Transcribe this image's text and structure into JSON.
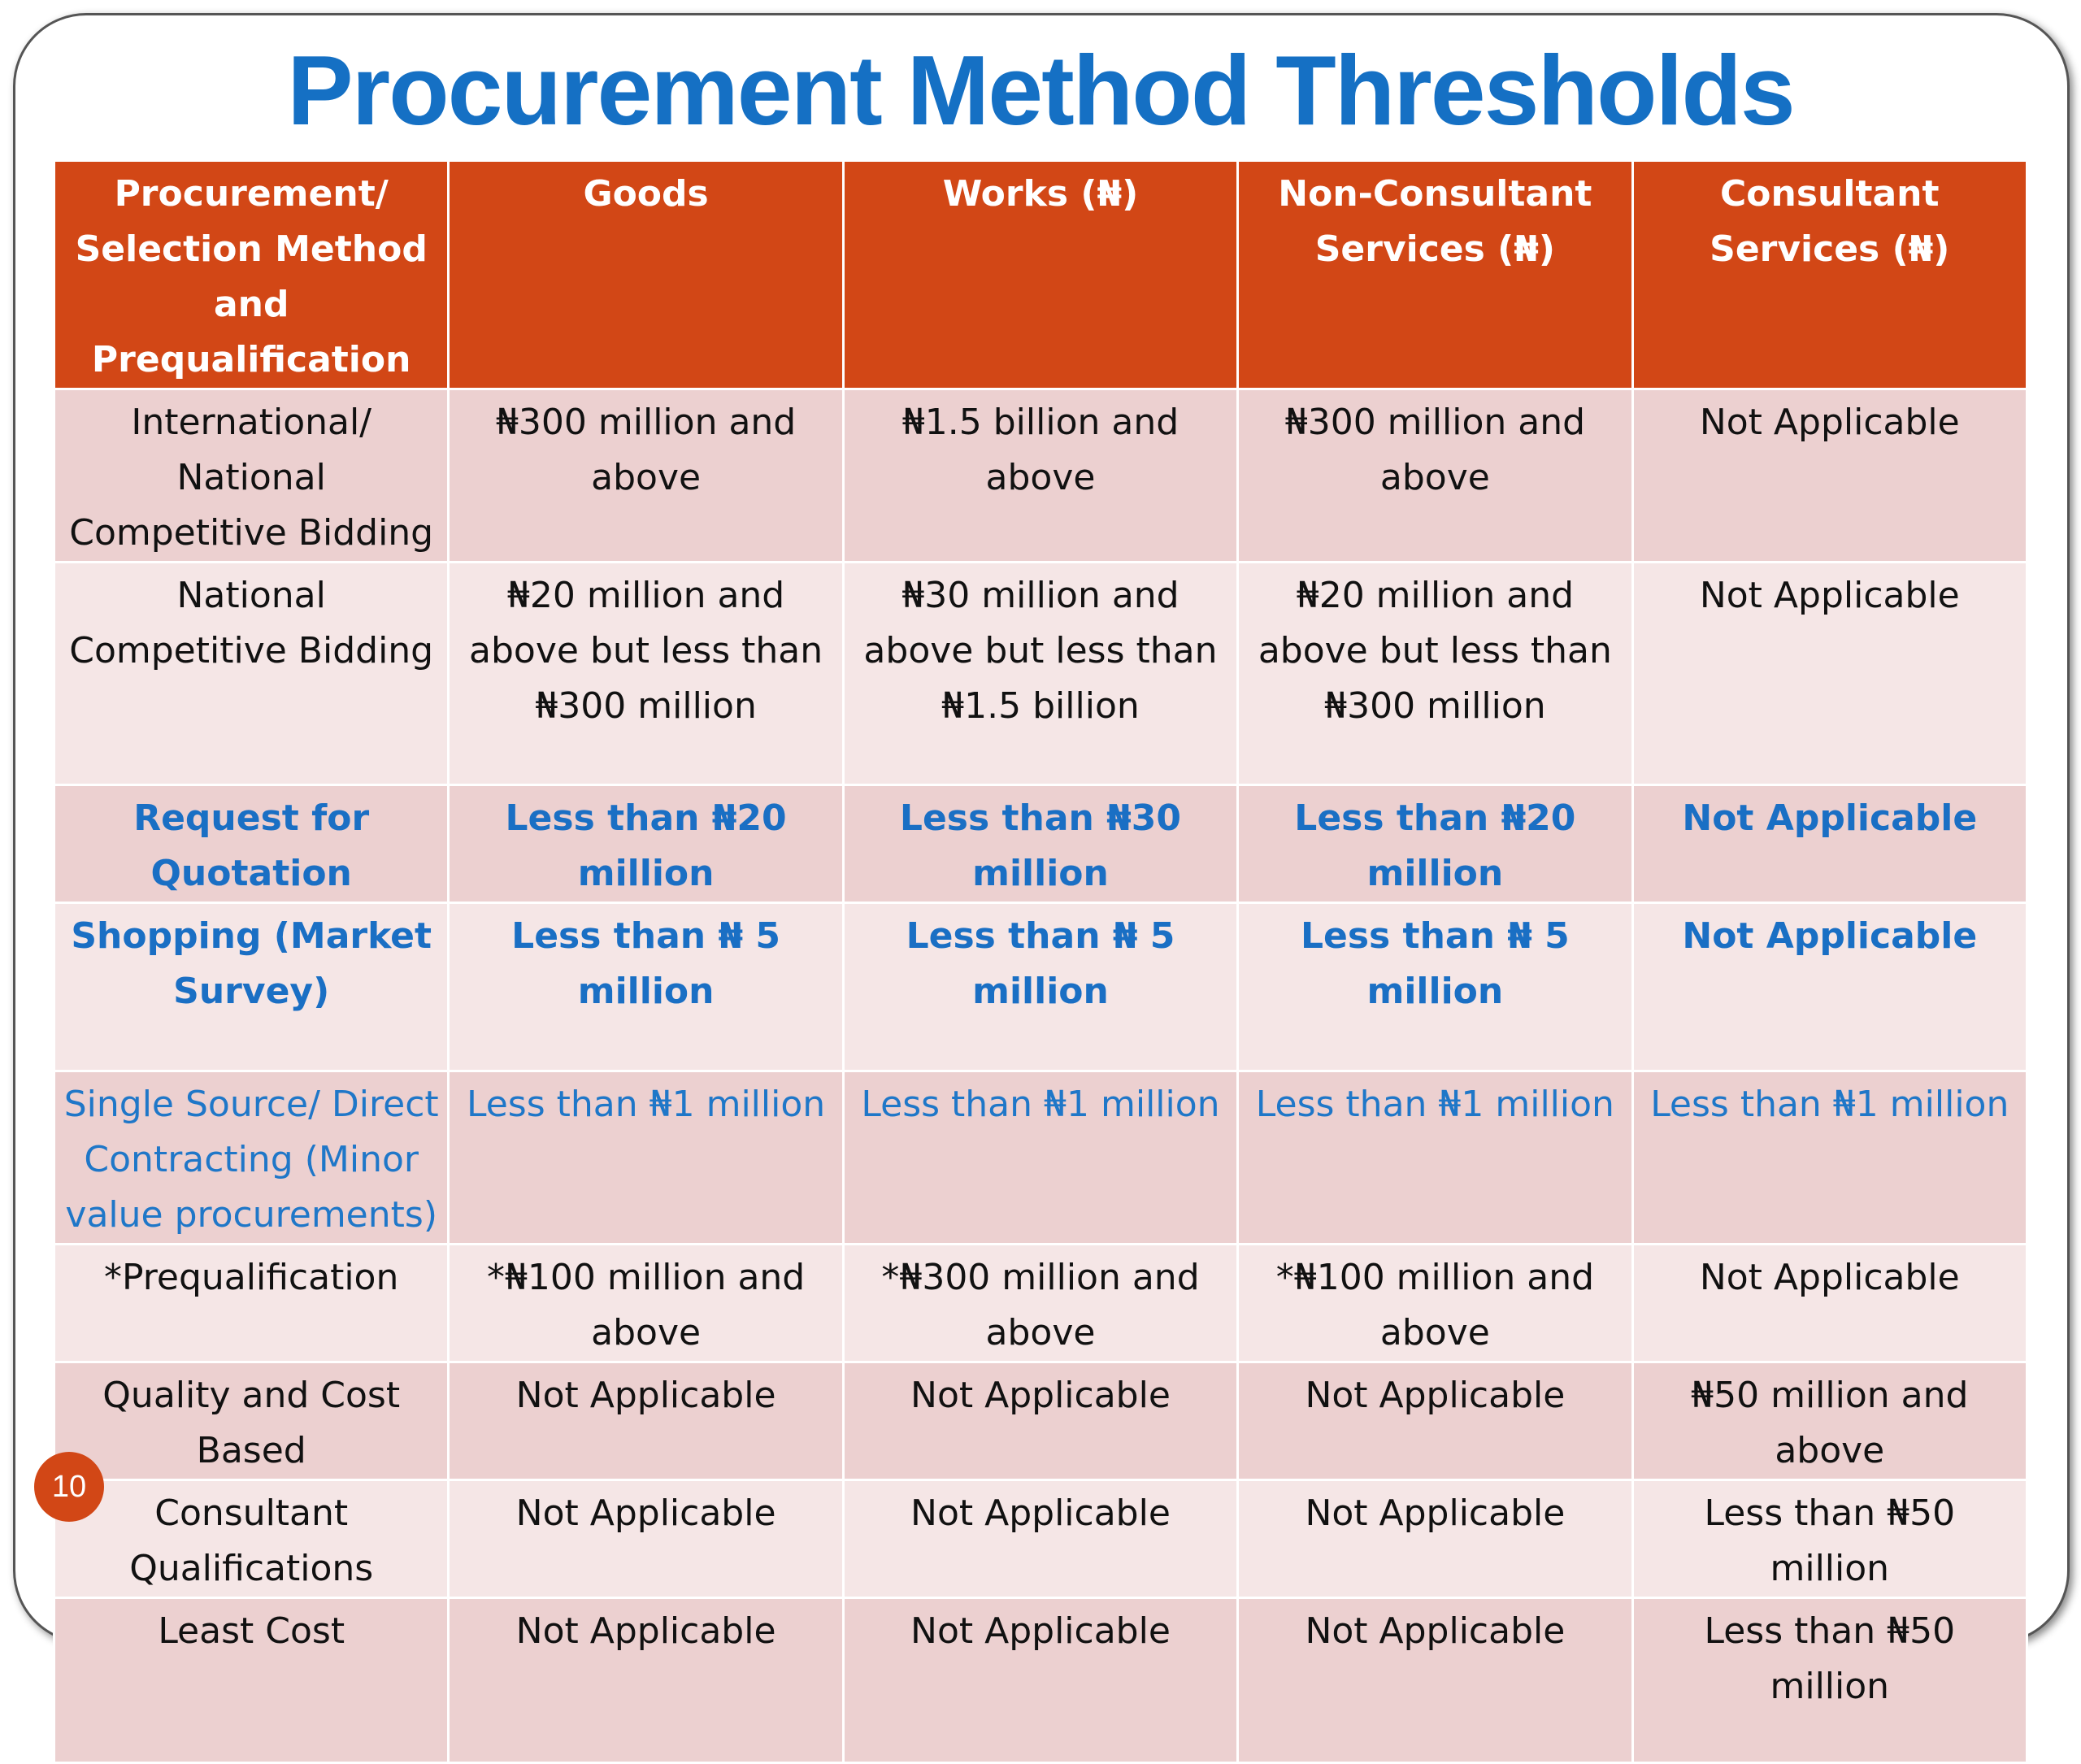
{
  "title": "Procurement Method Thresholds",
  "table": {
    "header": [
      "Procurement/ Selection Method and Prequalification",
      "Goods",
      "Works (₦)",
      "Non-Consultant Services (₦)",
      "Consultant Services (₦)"
    ],
    "rows": [
      [
        "International/ National Competitive Bidding",
        "₦300 million and above",
        "₦1.5 billion and above",
        "₦300 million and above",
        "Not Applicable"
      ],
      [
        "National Competitive Bidding",
        "₦20 million and above but less than ₦300 million",
        "₦30 million and above but less than ₦1.5 billion",
        "₦20 million and above but less than ₦300 million",
        "Not Applicable"
      ],
      [
        "Request for Quotation",
        "Less than ₦20 million",
        "Less than ₦30 million",
        "Less than ₦20 million",
        "Not Applicable"
      ],
      [
        "Shopping (Market Survey)",
        "Less than ₦ 5 million",
        "Less than ₦ 5 million",
        "Less than ₦ 5 million",
        "Not Applicable"
      ],
      [
        "Single Source/ Direct Contracting (Minor value procurements)",
        "Less than ₦1 million",
        "Less than ₦1 million",
        "Less than ₦1 million",
        "Less than ₦1 million"
      ],
      [
        "*Prequalification",
        "*₦100 million and above",
        "*₦300 million and above",
        "*₦100 million and above",
        "Not Applicable"
      ],
      [
        "Quality and Cost Based",
        "Not Applicable",
        "Not Applicable",
        "Not Applicable",
        "₦50 million and above"
      ],
      [
        "Consultant Qualifications",
        "Not Applicable",
        "Not Applicable",
        "Not Applicable",
        "Less than ₦50 million"
      ],
      [
        "Least Cost",
        "Not Applicable",
        "Not Applicable",
        "Not Applicable",
        "Less than ₦50 million"
      ]
    ]
  },
  "page_number": "10"
}
